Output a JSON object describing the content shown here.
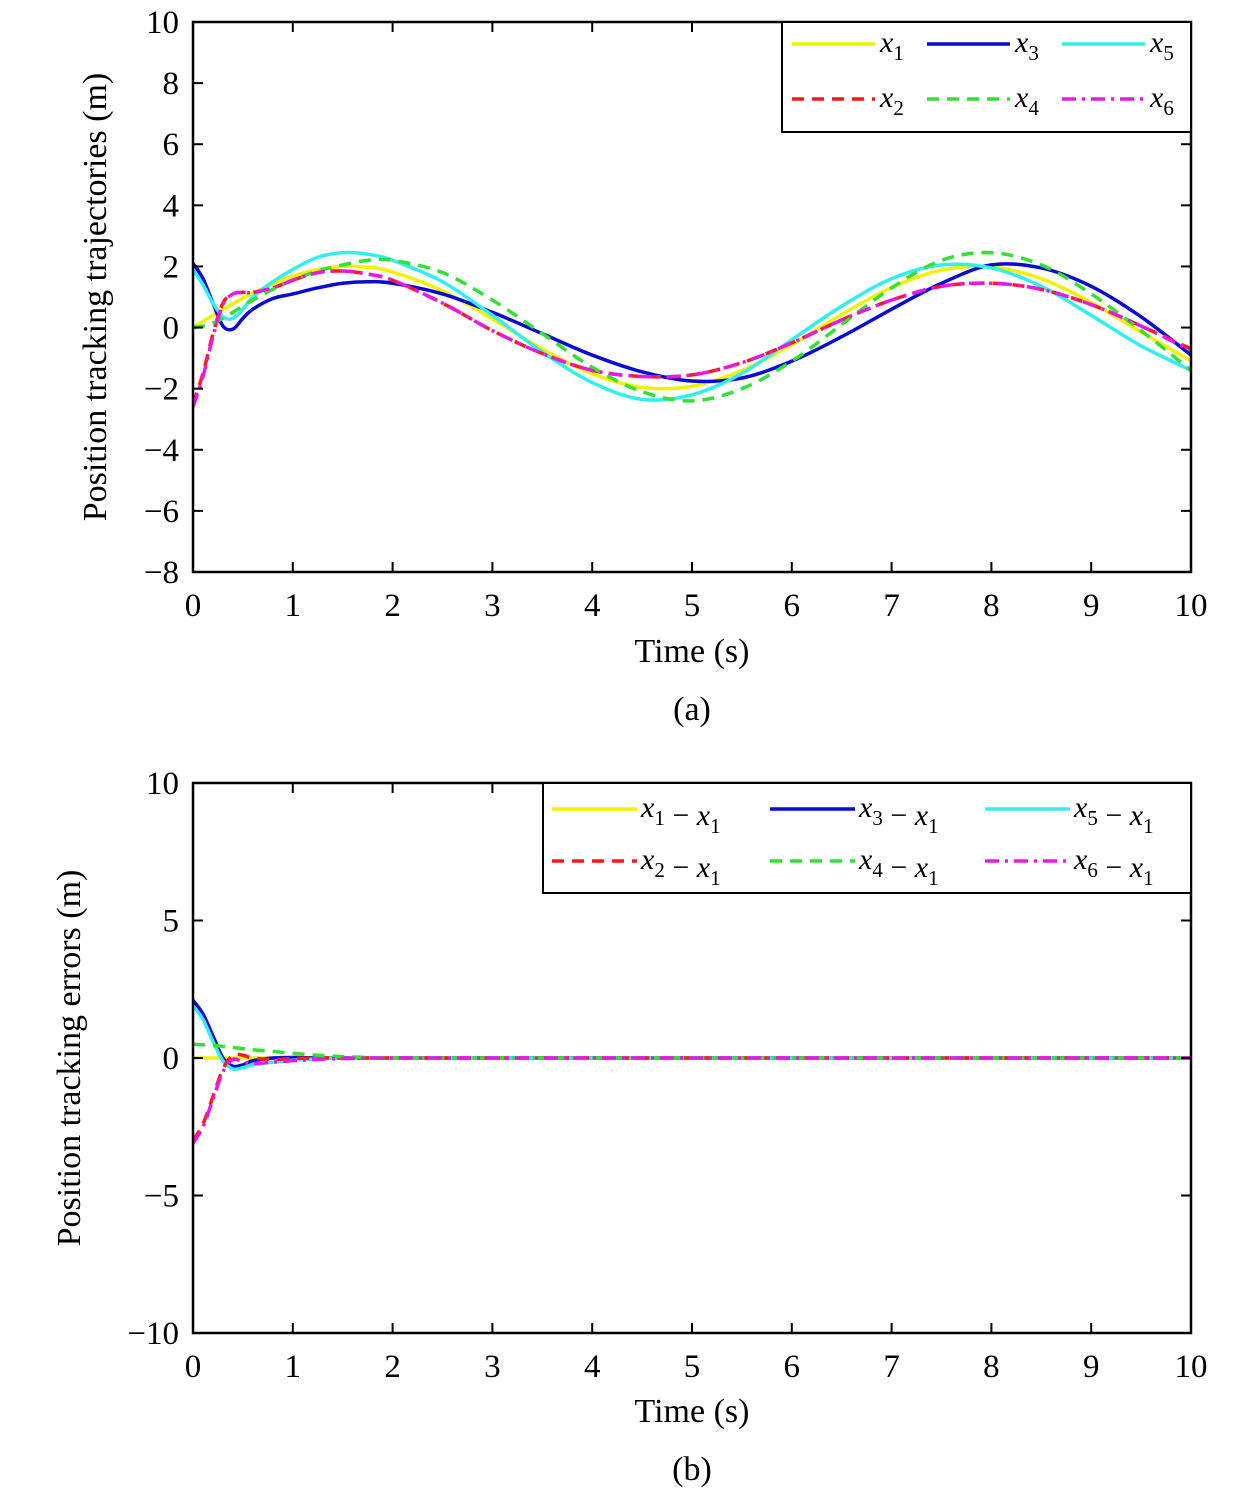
{
  "chart_data": [
    {
      "type": "line",
      "caption": "(a)",
      "xlabel": "Time (s)",
      "ylabel": "Position tracking trajectories (m)",
      "xlim": [
        0,
        10
      ],
      "ylim": [
        -8,
        10
      ],
      "xticks": [
        0,
        1,
        2,
        3,
        4,
        5,
        6,
        7,
        8,
        9,
        10
      ],
      "yticks": [
        -8,
        -6,
        -4,
        -2,
        0,
        2,
        4,
        6,
        8,
        10
      ],
      "grid": false,
      "legend_position": "top-right",
      "x": [
        0,
        0.1,
        0.2,
        0.3,
        0.4,
        0.5,
        0.6,
        0.8,
        1,
        1.25,
        1.5,
        1.75,
        2,
        2.5,
        3,
        3.5,
        4,
        4.5,
        5,
        5.5,
        6,
        6.5,
        7,
        7.5,
        8,
        8.5,
        9,
        9.5,
        10
      ],
      "series": [
        {
          "name": "x1",
          "color": "#f2f200",
          "style": "solid",
          "values": [
            0,
            0.2,
            0.4,
            0.59,
            0.78,
            0.96,
            1.13,
            1.43,
            1.68,
            1.9,
            2.0,
            1.97,
            1.82,
            1.2,
            0.28,
            -0.7,
            -1.51,
            -1.96,
            -1.92,
            -1.41,
            -0.56,
            0.43,
            1.31,
            1.88,
            1.98,
            1.6,
            0.82,
            -0.15,
            -1.09
          ]
        },
        {
          "name": "x3",
          "color": "#0a0ad0",
          "style": "solid",
          "values": [
            2.1,
            1.6,
            0.8,
            0.05,
            -0.05,
            0.3,
            0.6,
            0.95,
            1.1,
            1.3,
            1.45,
            1.5,
            1.45,
            1.1,
            0.5,
            -0.2,
            -0.9,
            -1.45,
            -1.75,
            -1.65,
            -1.1,
            -0.3,
            0.6,
            1.45,
            2.05,
            1.95,
            1.35,
            0.35,
            -0.9
          ]
        },
        {
          "name": "x5",
          "color": "#33eeee",
          "style": "solid",
          "values": [
            1.9,
            1.4,
            0.8,
            0.35,
            0.3,
            0.6,
            1.0,
            1.5,
            1.9,
            2.3,
            2.45,
            2.4,
            2.2,
            1.5,
            0.4,
            -0.8,
            -1.8,
            -2.35,
            -2.2,
            -1.5,
            -0.4,
            0.7,
            1.6,
            2.05,
            1.95,
            1.35,
            0.4,
            -0.6,
            -1.4
          ]
        },
        {
          "name": "x2",
          "color": "#ff1a1a",
          "style": "dashed",
          "values": [
            -2.5,
            -1.5,
            -0.2,
            0.8,
            1.1,
            1.15,
            1.15,
            1.3,
            1.55,
            1.8,
            1.85,
            1.75,
            1.55,
            0.8,
            -0.1,
            -0.85,
            -1.4,
            -1.6,
            -1.55,
            -1.15,
            -0.5,
            0.25,
            0.9,
            1.35,
            1.45,
            1.25,
            0.75,
            0.05,
            -0.7
          ]
        },
        {
          "name": "x4",
          "color": "#33e033",
          "style": "dashed",
          "values": [
            0,
            0.05,
            0.15,
            0.3,
            0.5,
            0.7,
            0.9,
            1.25,
            1.55,
            1.85,
            2.05,
            2.2,
            2.2,
            1.8,
            0.9,
            -0.2,
            -1.3,
            -2.1,
            -2.4,
            -2.0,
            -1.1,
            0.1,
            1.3,
            2.2,
            2.45,
            2.05,
            1.1,
            -0.1,
            -1.4
          ]
        },
        {
          "name": "x6",
          "color": "#e61ae6",
          "style": "dashdot",
          "values": [
            -2.6,
            -1.6,
            -0.3,
            0.75,
            1.1,
            1.15,
            1.15,
            1.3,
            1.55,
            1.8,
            1.85,
            1.75,
            1.55,
            0.8,
            -0.1,
            -0.85,
            -1.4,
            -1.6,
            -1.55,
            -1.15,
            -0.5,
            0.25,
            0.9,
            1.35,
            1.45,
            1.25,
            0.75,
            0.05,
            -0.75
          ]
        }
      ]
    },
    {
      "type": "line",
      "caption": "(b)",
      "xlabel": "Time (s)",
      "ylabel": "Position tracking errors (m)",
      "xlim": [
        0,
        10
      ],
      "ylim": [
        -10,
        10
      ],
      "xticks": [
        0,
        1,
        2,
        3,
        4,
        5,
        6,
        7,
        8,
        9,
        10
      ],
      "yticks": [
        -10,
        -5,
        0,
        5,
        10
      ],
      "grid": false,
      "legend_position": "top-right",
      "x": [
        0,
        0.1,
        0.2,
        0.3,
        0.4,
        0.5,
        0.6,
        0.8,
        1,
        1.25,
        1.5,
        1.75,
        2,
        3,
        4,
        5,
        6,
        7,
        8,
        9,
        10
      ],
      "series": [
        {
          "name": "x1 − x1",
          "color": "#f2f200",
          "style": "solid",
          "values": [
            0,
            0,
            0,
            0,
            0,
            0,
            0,
            0,
            0,
            0,
            0,
            0,
            0,
            0,
            0,
            0,
            0,
            0,
            0,
            0,
            0
          ]
        },
        {
          "name": "x3 − x1",
          "color": "#0a0ad0",
          "style": "solid",
          "values": [
            2.1,
            1.6,
            0.8,
            0.0,
            -0.3,
            -0.25,
            -0.1,
            0,
            0.02,
            0,
            0,
            0,
            0,
            0,
            0,
            0,
            0,
            0,
            0,
            0,
            0
          ]
        },
        {
          "name": "x5 − x1",
          "color": "#33eeee",
          "style": "solid",
          "values": [
            1.9,
            1.4,
            0.6,
            -0.1,
            -0.4,
            -0.35,
            -0.25,
            -0.15,
            -0.08,
            -0.03,
            0,
            0,
            0,
            0,
            0,
            0,
            0,
            0,
            0,
            0,
            0
          ]
        },
        {
          "name": "x2 − x1",
          "color": "#ff1a1a",
          "style": "dashed",
          "values": [
            -3.0,
            -2.4,
            -1.4,
            -0.4,
            0.1,
            0.1,
            0,
            -0.05,
            -0.02,
            0,
            0,
            0,
            0,
            0,
            0,
            0,
            0,
            0,
            0,
            0,
            0
          ]
        },
        {
          "name": "x4 − x1",
          "color": "#33e033",
          "style": "dashed",
          "values": [
            0.5,
            0.48,
            0.45,
            0.42,
            0.38,
            0.34,
            0.3,
            0.24,
            0.17,
            0.1,
            0.05,
            0.02,
            0,
            0,
            0,
            0,
            0,
            0,
            0,
            0,
            0
          ]
        },
        {
          "name": "x6 − x1",
          "color": "#e61ae6",
          "style": "dashdot",
          "values": [
            -3.1,
            -2.5,
            -1.5,
            -0.5,
            -0.05,
            -0.15,
            -0.2,
            -0.15,
            -0.1,
            -0.05,
            -0.02,
            0,
            0,
            0,
            0,
            0,
            0,
            0,
            0,
            0,
            0
          ]
        }
      ]
    }
  ]
}
